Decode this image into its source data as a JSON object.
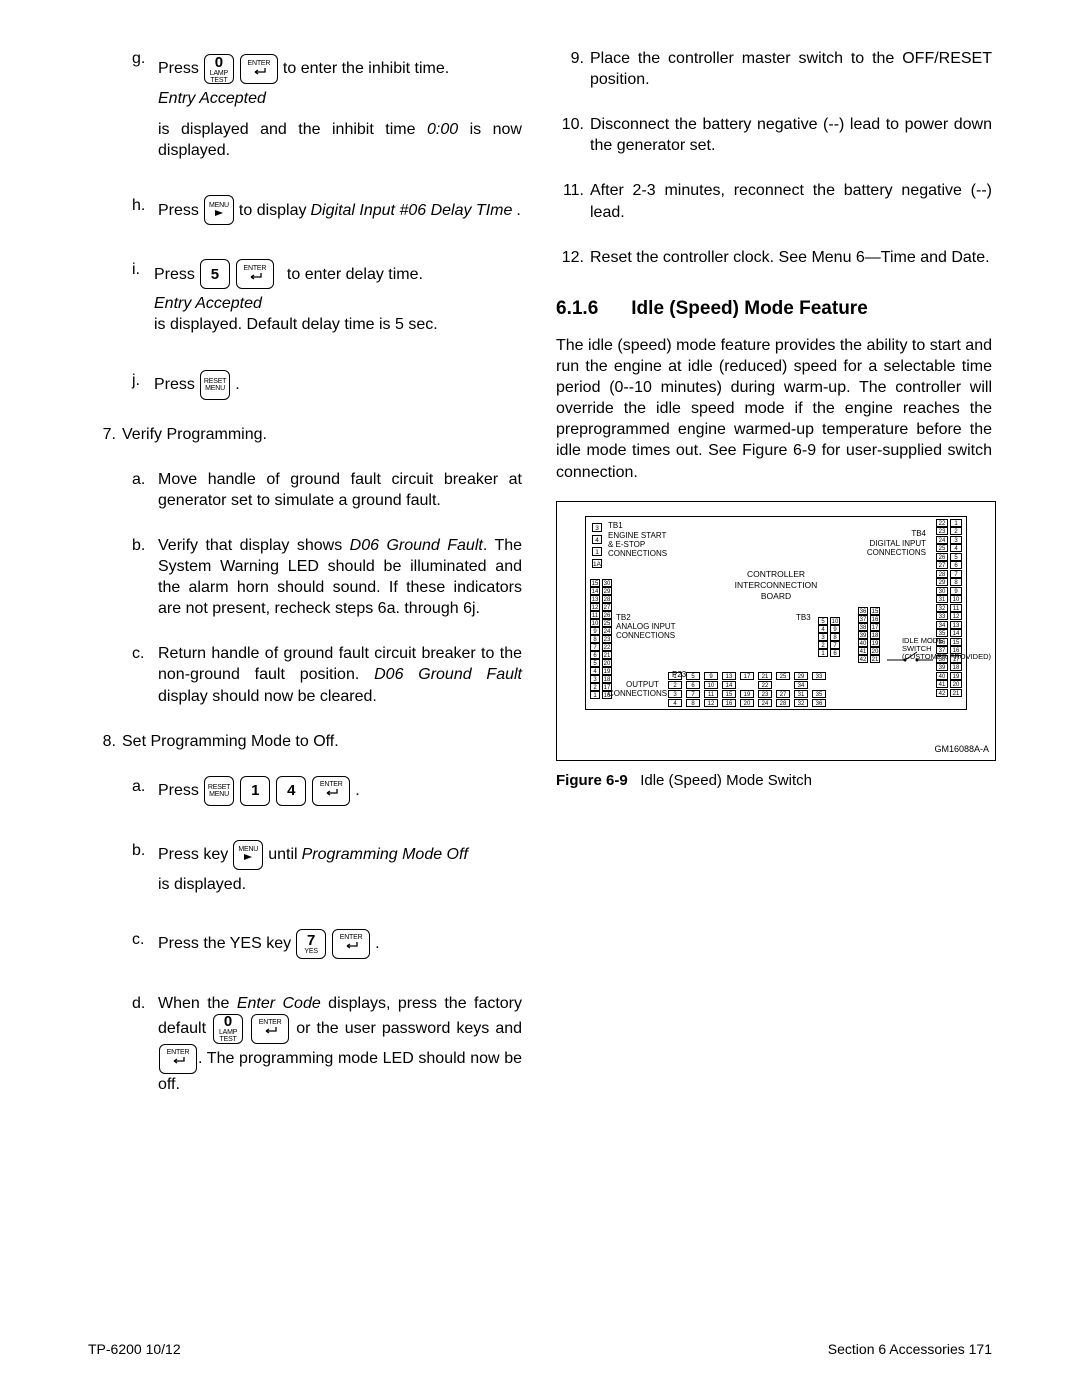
{
  "keys": {
    "zero_top": "0",
    "zero_mid": "LAMP",
    "zero_bot": "TEST",
    "enter_label": "ENTER",
    "menu_label": "MENU",
    "five": "5",
    "reset_top": "RESET",
    "reset_bot": "MENU",
    "one": "1",
    "four": "4",
    "seven_top": "7",
    "seven_bot": "YES"
  },
  "left": {
    "g_pre": "Press",
    "g_post1": "to enter the inhibit time.",
    "g_post2": "Entry Accepted",
    "g_post3": "is displayed and the inhibit time",
    "g_post4": "0:00",
    "g_post5": "is now displayed.",
    "h_pre": "Press",
    "h_post1": "to display",
    "h_post2": "Digital Input #06 Delay TIme",
    "i_pre": "Press",
    "i_post1": "to enter delay time.",
    "i_post2": "Entry Accepted",
    "i_post3": "is displayed.  Default delay time is 5 sec.",
    "j_pre": "Press",
    "step7": "Verify Programming.",
    "s7a": "Move handle of ground fault circuit breaker at generator set to simulate a ground fault.",
    "s7b1": "Verify that display shows",
    "s7b_it": "D06 Ground Fault",
    "s7b2": ". The System Warning LED should be illuminated and the alarm horn should sound. If these indicators are not present, recheck steps 6a. through 6j.",
    "s7c1": "Return handle of ground fault circuit breaker to the non-ground fault position.",
    "s7c_it": "D06 Ground Fault",
    "s7c2": "display should now be cleared.",
    "step8": "Set Programming Mode to Off.",
    "s8a_pre": "Press",
    "s8b_pre": "Press key",
    "s8b_post1": "until",
    "s8b_it": "Programming Mode Off",
    "s8b_post2": "is displayed.",
    "s8c_pre": "Press the YES key",
    "s8d1": "When the",
    "s8d_it1": "Enter Code",
    "s8d2": "displays, press the factory default",
    "s8d3": "or the user password keys and",
    "s8d4": ".  The programming mode LED should now be off."
  },
  "right": {
    "s9": "Place the controller master switch to the OFF/RESET position.",
    "s10": "Disconnect the battery negative (--) lead to power down the generator set.",
    "s11": "After 2-3 minutes, reconnect the battery negative (--) lead.",
    "s12": "Reset the controller clock.  See Menu 6—Time and Date.",
    "hnum": "6.1.6",
    "htitle": "Idle (Speed) Mode Feature",
    "para": "The idle (speed) mode feature provides the ability to start and run the engine at idle (reduced) speed for a selectable time period (0--10 minutes) during warm-up. The controller will override the idle speed mode if the engine reaches the preprogrammed engine warmed-up temperature before the idle mode times out.  See Figure 6-9 for user-supplied switch connection.",
    "fig_tb1": "TB1",
    "fig_eng1": "ENGINE START",
    "fig_eng2": "& E-STOP",
    "fig_eng3": "CONNECTIONS",
    "fig_tb4": "TB4",
    "fig_di1": "DIGITAL INPUT",
    "fig_di2": "CONNECTIONS",
    "fig_ctrl1": "CONTROLLER",
    "fig_ctrl2": "INTERCONNECTION",
    "fig_ctrl3": "BOARD",
    "fig_tb2": "TB2",
    "fig_ai1": "ANALOG INPUT",
    "fig_ai2": "CONNECTIONS",
    "fig_tb3": "TB3",
    "fig_p23": "P23",
    "fig_out1": "OUTPUT",
    "fig_out2": "CONNECTIONS",
    "fig_idle1": "IDLE MODE",
    "fig_idle2": "SWITCH",
    "fig_idle3": "(CUSTOMER PROVIDED)",
    "fig_code": "GM16088A-A",
    "fig_cap_b": "Figure 6-9",
    "fig_cap": "Idle (Speed) Mode Switch"
  },
  "footer": {
    "left": "TP-6200  10/12",
    "right": "Section 6  Accessories   171"
  },
  "colors": {
    "text": "#000000",
    "bg": "#ffffff",
    "border": "#000000"
  }
}
